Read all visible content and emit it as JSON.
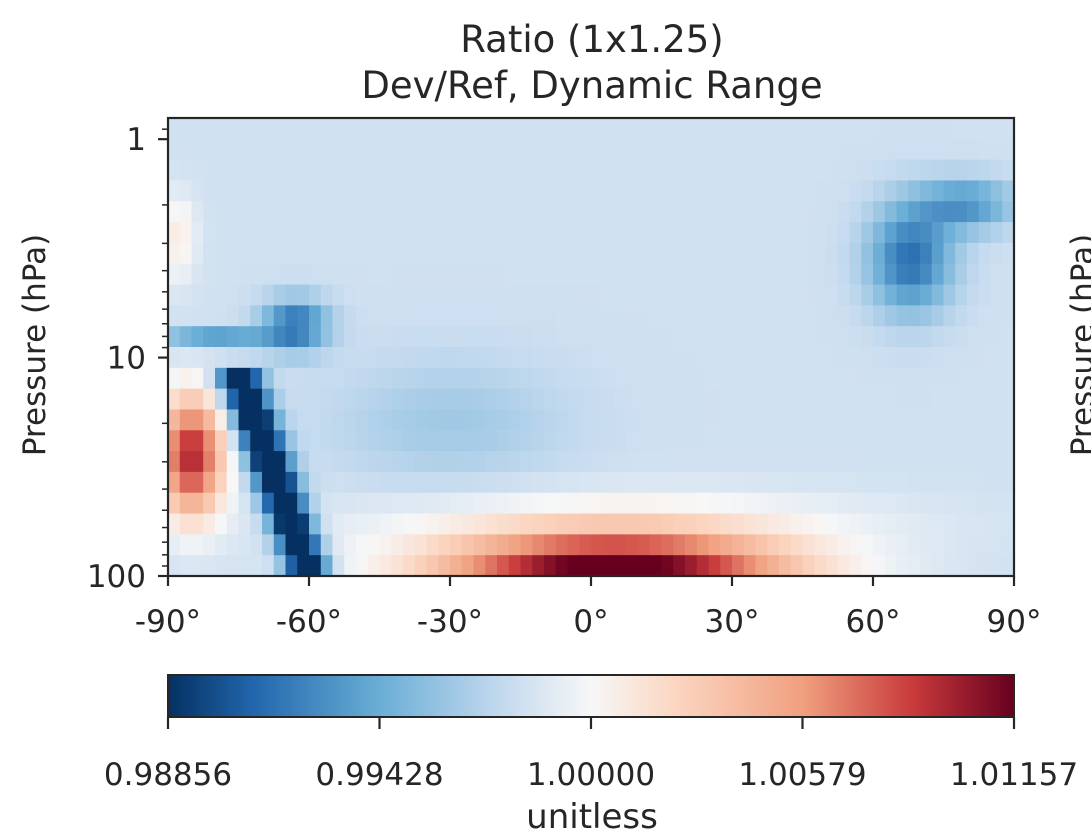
{
  "chart_data": {
    "type": "heatmap",
    "title_line1": "Ratio (1x1.25)",
    "title_line2": "Dev/Ref, Dynamic Range",
    "xlabel": "",
    "ylabel": "Pressure (hPa)",
    "xlim": [
      -90,
      90
    ],
    "ylim_log": [
      0.8,
      100
    ],
    "x_ticks": [
      -90,
      -60,
      -30,
      0,
      30,
      60,
      90
    ],
    "x_tick_labels": [
      "-90°",
      "-60°",
      "-30°",
      "0°",
      "30°",
      "60°",
      "90°"
    ],
    "y_ticks": [
      1,
      10,
      100
    ],
    "y_tick_labels": [
      "1",
      "10",
      "100"
    ],
    "y_scale": "log",
    "colormap": "RdBu_r",
    "colorbar": {
      "min": 0.98856,
      "max": 1.01157,
      "tick_labels": [
        "0.98856",
        "0.99428",
        "1.00000",
        "1.00579",
        "1.01157"
      ],
      "label": "unitless"
    },
    "clipped_right_label": "Pressure (hPa)"
  }
}
